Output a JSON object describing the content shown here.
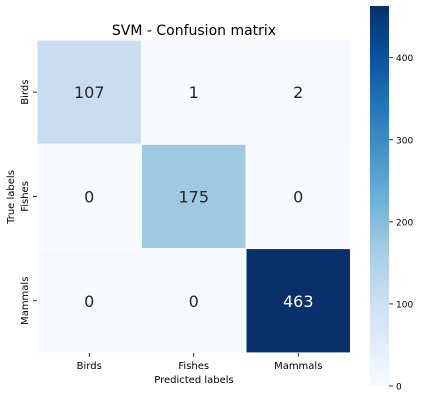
{
  "chart_data": {
    "type": "heatmap",
    "title": "SVM - Confusion matrix",
    "xlabel": "Predicted labels",
    "ylabel": "True labels",
    "x_categories": [
      "Birds",
      "Fishes",
      "Mammals"
    ],
    "y_categories": [
      "Birds",
      "Fishes",
      "Mammals"
    ],
    "values": [
      [
        107,
        1,
        2
      ],
      [
        0,
        175,
        0
      ],
      [
        0,
        0,
        463
      ]
    ],
    "colorbar": {
      "range": [
        0,
        463
      ],
      "ticks": [
        0,
        100,
        200,
        300,
        400
      ],
      "colormap": "Blues"
    },
    "annotation_colors": {
      "dark_text": "#262626",
      "light_text": "#ffffff"
    }
  }
}
